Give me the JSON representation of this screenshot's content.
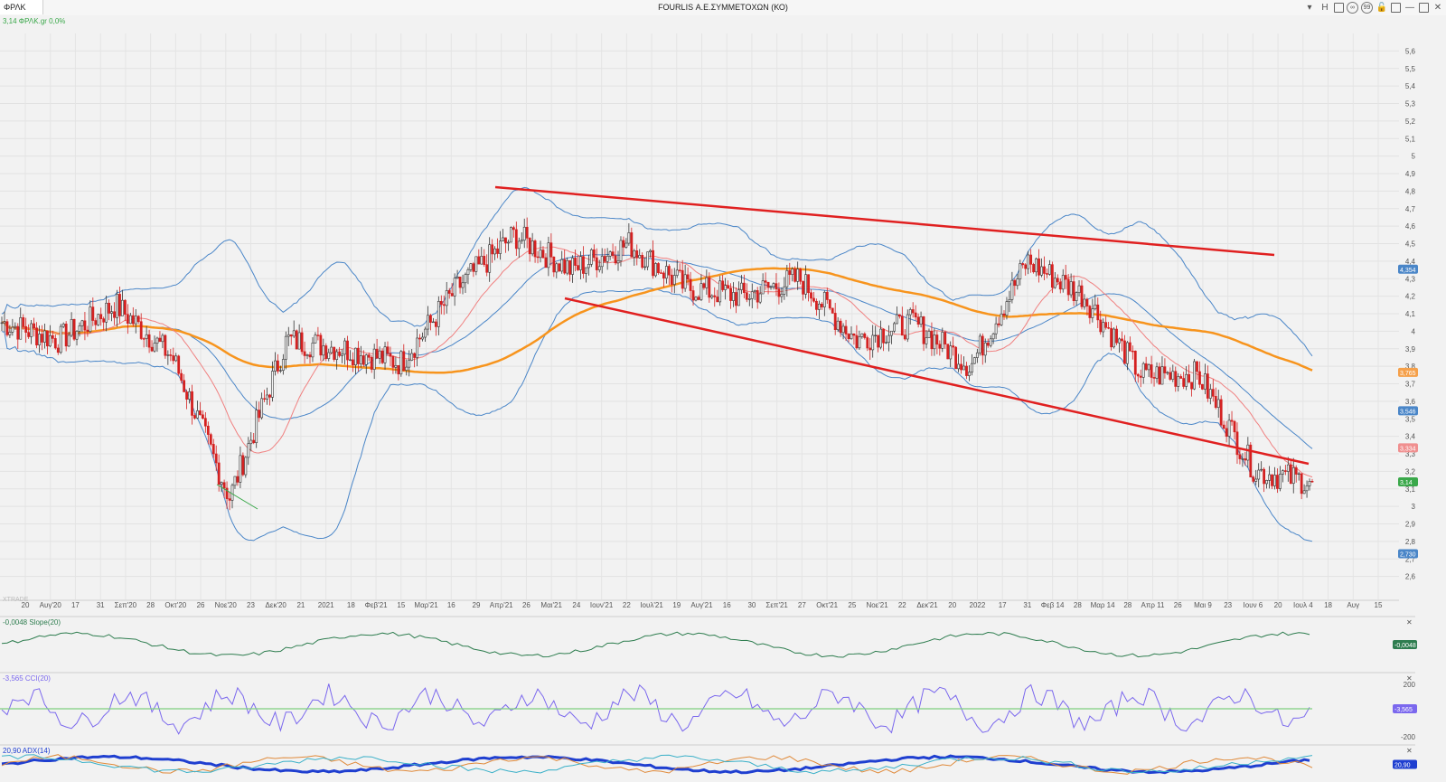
{
  "window": {
    "tab_label": "ΦΡΛΚ",
    "title": "FOURLIS Α.Ε.ΣΥΜΜΕΤΟΧΩΝ (ΚΟ)",
    "buttons": [
      {
        "name": "dropdown-icon",
        "glyph": "▾"
      },
      {
        "name": "history-button",
        "glyph": "H"
      },
      {
        "name": "layout-icon",
        "glyph": ""
      },
      {
        "name": "link-icon",
        "glyph": "∞"
      },
      {
        "name": "quote-icon",
        "glyph": "99"
      },
      {
        "name": "lock-icon",
        "glyph": "🔓"
      },
      {
        "name": "restore-icon",
        "glyph": ""
      },
      {
        "name": "minimize-icon",
        "glyph": "—"
      },
      {
        "name": "maximize-icon",
        "glyph": ""
      },
      {
        "name": "close-icon",
        "glyph": "✕"
      }
    ]
  },
  "main_panel": {
    "legend": "3,14 ΦΡΛΚ.gr 0,0%",
    "watermark": "XTRADE",
    "y_ticks": [
      "2,6",
      "2,7",
      "2,8",
      "2,9",
      "3",
      "3,1",
      "3,2",
      "3,3",
      "3,4",
      "3,5",
      "3,6",
      "3,7",
      "3,8",
      "3,9",
      "4",
      "4,1",
      "4,2",
      "4,3",
      "4,4",
      "4,5",
      "4,6",
      "4,7",
      "4,8",
      "4,9",
      "5",
      "5,1",
      "5,2",
      "5,3",
      "5,4",
      "5,5",
      "5,6"
    ],
    "price_tags": [
      {
        "label": "4,354",
        "value": 4.354,
        "color": "#4a86c8"
      },
      {
        "label": "3,765",
        "value": 3.765,
        "color": "#f5a04a"
      },
      {
        "label": "3,546",
        "value": 3.546,
        "color": "#4a86c8"
      },
      {
        "label": "3,334",
        "value": 3.334,
        "color": "#f08f8f"
      },
      {
        "label": "3,14",
        "value": 3.14,
        "color": "#3aa84a"
      },
      {
        "label": "2,730",
        "value": 2.73,
        "color": "#4a86c8"
      }
    ],
    "x_labels": [
      "20",
      "Αυγ'20",
      "17",
      "31",
      "Σεπ'20",
      "28",
      "Οκτ'20",
      "26",
      "Νοε'20",
      "23",
      "Δεκ'20",
      "21",
      "2021",
      "18",
      "Φεβ'21",
      "15",
      "Μαρ'21",
      "16",
      "29",
      "Απρ'21",
      "26",
      "Μαι'21",
      "24",
      "Ιουν'21",
      "22",
      "Ιουλ'21",
      "19",
      "Αυγ'21",
      "16",
      "30",
      "Σεπ'21",
      "27",
      "Οκτ'21",
      "25",
      "Νοε'21",
      "22",
      "Δεκ'21",
      "20",
      "2022",
      "17",
      "31",
      "Φεβ 14",
      "28",
      "Μαρ 14",
      "28",
      "Απρ 11",
      "26",
      "Μαι 9",
      "23",
      "Ιουν 6",
      "20",
      "Ιουλ 4",
      "18",
      "Αυγ",
      "15"
    ]
  },
  "indicators": [
    {
      "name": "slope",
      "legend": "-0,0048 Slope(20)",
      "tag": "-0,0048",
      "color": "#2e7d4f"
    },
    {
      "name": "cci",
      "legend": "-3,565 CCI(20)",
      "tag": "-3,565",
      "ticks": [
        "200",
        "-200"
      ],
      "color": "#7b68ee"
    },
    {
      "name": "adx",
      "legend": "20,90 ADX(14)",
      "tag": "20,90",
      "color": "#1f3fd0"
    }
  ],
  "colors": {
    "up": "#333333",
    "down": "#d42020",
    "sma_orange": "#f7941d",
    "bands": "#4a86c8",
    "ema_red": "#f08080",
    "trend": "#e02020"
  },
  "chart_data": {
    "type": "candlestick",
    "title": "FOURLIS Α.Ε.ΣΥΜΜΕΤΟΧΩΝ (ΚΟ)",
    "ylim": [
      2.5,
      5.7
    ],
    "last_close": 3.14,
    "close_path_by_month": [
      {
        "date": "2020-07",
        "close": 4.05
      },
      {
        "date": "2020-08",
        "close": 3.95
      },
      {
        "date": "2020-09",
        "close": 4.15
      },
      {
        "date": "2020-10",
        "close": 3.85
      },
      {
        "date": "2020-11",
        "close": 3.05
      },
      {
        "date": "2020-12",
        "close": 3.95
      },
      {
        "date": "2021-01",
        "close": 3.9
      },
      {
        "date": "2021-02",
        "close": 3.82
      },
      {
        "date": "2021-03",
        "close": 4.25
      },
      {
        "date": "2021-04",
        "close": 4.55
      },
      {
        "date": "2021-05",
        "close": 4.35
      },
      {
        "date": "2021-06",
        "close": 4.5
      },
      {
        "date": "2021-07",
        "close": 4.25
      },
      {
        "date": "2021-08",
        "close": 4.2
      },
      {
        "date": "2021-09",
        "close": 4.3
      },
      {
        "date": "2021-10",
        "close": 3.95
      },
      {
        "date": "2021-11",
        "close": 4.05
      },
      {
        "date": "2021-12",
        "close": 3.8
      },
      {
        "date": "2022-01",
        "close": 4.4
      },
      {
        "date": "2022-02",
        "close": 4.2
      },
      {
        "date": "2022-03",
        "close": 3.75
      },
      {
        "date": "2022-04",
        "close": 3.75
      },
      {
        "date": "2022-05",
        "close": 3.2
      },
      {
        "date": "2022-06",
        "close": 3.14
      }
    ]
  }
}
